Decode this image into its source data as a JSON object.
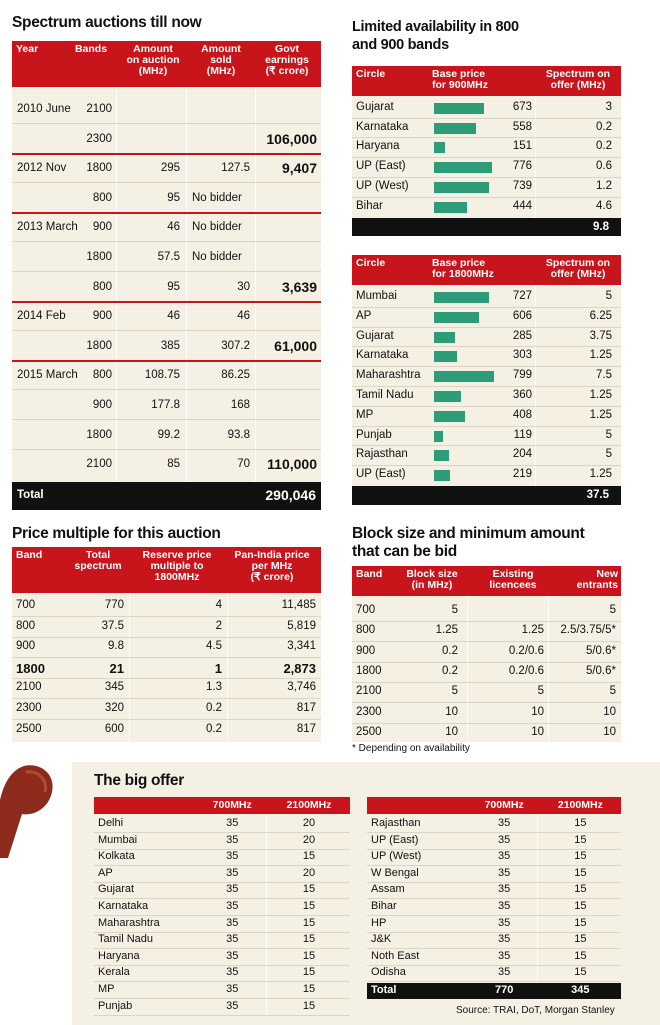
{
  "auctions": {
    "title": "Spectrum auctions till now",
    "headers": [
      "Year",
      "Bands",
      "Amount on auction (MHz)",
      "Amount sold (MHz)",
      "Govt earnings (₹ crore)"
    ],
    "headers_lines": [
      [
        "Year"
      ],
      [
        "Bands"
      ],
      [
        "Amount",
        "on auction",
        "(MHz)"
      ],
      [
        "Amount",
        "sold",
        "(MHz)"
      ],
      [
        "Govt",
        "earnings",
        "(₹ crore)"
      ]
    ],
    "rows": [
      {
        "year": "2010 June",
        "band": "2100",
        "auction": "",
        "sold": "",
        "earn": ""
      },
      {
        "year": "",
        "band": "2300",
        "auction": "",
        "sold": "",
        "earn": "106,000"
      },
      {
        "year": "2012 Nov",
        "band": "1800",
        "auction": "295",
        "sold": "127.5",
        "earn": "9,407"
      },
      {
        "year": "",
        "band": "800",
        "auction": "95",
        "sold": "No bidder",
        "earn": ""
      },
      {
        "year": "2013 March",
        "band": "900",
        "auction": "46",
        "sold": "No bidder",
        "earn": ""
      },
      {
        "year": "",
        "band": "1800",
        "auction": "57.5",
        "sold": "No bidder",
        "earn": ""
      },
      {
        "year": "",
        "band": "800",
        "auction": "95",
        "sold": "30",
        "earn": "3,639"
      },
      {
        "year": "2014 Feb",
        "band": "900",
        "auction": "46",
        "sold": "46",
        "earn": ""
      },
      {
        "year": "",
        "band": "1800",
        "auction": "385",
        "sold": "307.2",
        "earn": "61,000"
      },
      {
        "year": "2015 March",
        "band": "800",
        "auction": "108.75",
        "sold": "86.25",
        "earn": ""
      },
      {
        "year": "",
        "band": "900",
        "auction": "177.8",
        "sold": "168",
        "earn": ""
      },
      {
        "year": "",
        "band": "1800",
        "auction": "99.2",
        "sold": "93.8",
        "earn": ""
      },
      {
        "year": "",
        "band": "2100",
        "auction": "85",
        "sold": "70",
        "earn": "110,000"
      }
    ],
    "total_label": "Total",
    "total_value": "290,046"
  },
  "limited": {
    "title_lines": [
      "Limited availability in 800",
      "and 900 bands"
    ],
    "t900": {
      "headers_lines": [
        [
          "Circle"
        ],
        [
          "Base price",
          "for 900MHz"
        ],
        [
          "Spectrum on",
          "offer (MHz)"
        ]
      ],
      "rows": [
        {
          "circle": "Gujarat",
          "price": 673,
          "offer": "3"
        },
        {
          "circle": "Karnataka",
          "price": 558,
          "offer": "0.2"
        },
        {
          "circle": "Haryana",
          "price": 151,
          "offer": "0.2"
        },
        {
          "circle": "UP (East)",
          "price": 776,
          "offer": "0.6"
        },
        {
          "circle": "UP (West)",
          "price": 739,
          "offer": "1.2"
        },
        {
          "circle": "Bihar",
          "price": 444,
          "offer": "4.6"
        }
      ],
      "total": "9.8"
    },
    "t1800": {
      "headers_lines": [
        [
          "Circle"
        ],
        [
          "Base price",
          "for 1800MHz"
        ],
        [
          "Spectrum on",
          "offer (MHz)"
        ]
      ],
      "rows": [
        {
          "circle": "Mumbai",
          "price": 727,
          "offer": "5"
        },
        {
          "circle": "AP",
          "price": 606,
          "offer": "6.25"
        },
        {
          "circle": "Gujarat",
          "price": 285,
          "offer": "3.75"
        },
        {
          "circle": "Karnataka",
          "price": 303,
          "offer": "1.25"
        },
        {
          "circle": "Maharashtra",
          "price": 799,
          "offer": "7.5"
        },
        {
          "circle": "Tamil Nadu",
          "price": 360,
          "offer": "1.25"
        },
        {
          "circle": "MP",
          "price": 408,
          "offer": "1.25"
        },
        {
          "circle": "Punjab",
          "price": 119,
          "offer": "5"
        },
        {
          "circle": "Rajasthan",
          "price": 204,
          "offer": "5"
        },
        {
          "circle": "UP (East)",
          "price": 219,
          "offer": "1.25"
        }
      ],
      "total": "37.5"
    },
    "bar_color": "#2e9c78"
  },
  "multiple": {
    "title": "Price multiple for this auction",
    "headers_lines": [
      [
        "Band"
      ],
      [
        "Total",
        "spectrum"
      ],
      [
        "Reserve price",
        "multiple to",
        "1800MHz"
      ],
      [
        "Pan-India price",
        "per MHz",
        "(₹ crore)"
      ]
    ],
    "rows": [
      {
        "band": "700",
        "total": "770",
        "mult": "4",
        "price": "11,485",
        "bold": false
      },
      {
        "band": "800",
        "total": "37.5",
        "mult": "2",
        "price": "5,819",
        "bold": false
      },
      {
        "band": "900",
        "total": "9.8",
        "mult": "4.5",
        "price": "3,341",
        "bold": false
      },
      {
        "band": "1800",
        "total": "21",
        "mult": "1",
        "price": "2,873",
        "bold": true
      },
      {
        "band": "2100",
        "total": "345",
        "mult": "1.3",
        "price": "3,746",
        "bold": false
      },
      {
        "band": "2300",
        "total": "320",
        "mult": "0.2",
        "price": "817",
        "bold": false
      },
      {
        "band": "2500",
        "total": "600",
        "mult": "0.2",
        "price": "817",
        "bold": false
      }
    ]
  },
  "block": {
    "title_lines": [
      "Block size and minimum amount",
      "that can be bid"
    ],
    "headers_lines": [
      [
        "Band"
      ],
      [
        "Block size",
        "(in MHz)"
      ],
      [
        "Existing",
        "licencees"
      ],
      [
        "New",
        "entrants"
      ]
    ],
    "rows": [
      {
        "band": "700",
        "size": "5",
        "existing": "",
        "new": "5"
      },
      {
        "band": "800",
        "size": "1.25",
        "existing": "1.25",
        "new": "2.5/3.75/5*"
      },
      {
        "band": "900",
        "size": "0.2",
        "existing": "0.2/0.6",
        "new": "5/0.6*"
      },
      {
        "band": "1800",
        "size": "0.2",
        "existing": "0.2/0.6",
        "new": "5/0.6*"
      },
      {
        "band": "2100",
        "size": "5",
        "existing": "5",
        "new": "5"
      },
      {
        "band": "2300",
        "size": "10",
        "existing": "10",
        "new": "10"
      },
      {
        "band": "2500",
        "size": "10",
        "existing": "10",
        "new": "10"
      }
    ],
    "note": "* Depending on availability"
  },
  "offer": {
    "title": "The big offer",
    "col_a": "700MHz",
    "col_b": "2100MHz",
    "left": [
      [
        "Delhi",
        "35",
        "20"
      ],
      [
        "Mumbai",
        "35",
        "20"
      ],
      [
        "Kolkata",
        "35",
        "15"
      ],
      [
        "AP",
        "35",
        "20"
      ],
      [
        "Gujarat",
        "35",
        "15"
      ],
      [
        "Karnataka",
        "35",
        "15"
      ],
      [
        "Maharashtra",
        "35",
        "15"
      ],
      [
        "Tamil Nadu",
        "35",
        "15"
      ],
      [
        "Haryana",
        "35",
        "15"
      ],
      [
        "Kerala",
        "35",
        "15"
      ],
      [
        "MP",
        "35",
        "15"
      ],
      [
        "Punjab",
        "35",
        "15"
      ]
    ],
    "right": [
      [
        "Rajasthan",
        "35",
        "15"
      ],
      [
        "UP (East)",
        "35",
        "15"
      ],
      [
        "UP (West)",
        "35",
        "15"
      ],
      [
        "W Bengal",
        "35",
        "15"
      ],
      [
        "Assam",
        "35",
        "15"
      ],
      [
        "Bihar",
        "35",
        "15"
      ],
      [
        "HP",
        "35",
        "15"
      ],
      [
        "J&K",
        "35",
        "15"
      ],
      [
        "Noth East",
        "35",
        "15"
      ],
      [
        "Odisha",
        "35",
        "15"
      ]
    ],
    "total": [
      "Total",
      "770",
      "345"
    ]
  },
  "source": "Source: TRAI, DoT, Morgan Stanley",
  "colors": {
    "red": "#c8151b",
    "panel": "#f5f0e4",
    "black": "#111111"
  }
}
